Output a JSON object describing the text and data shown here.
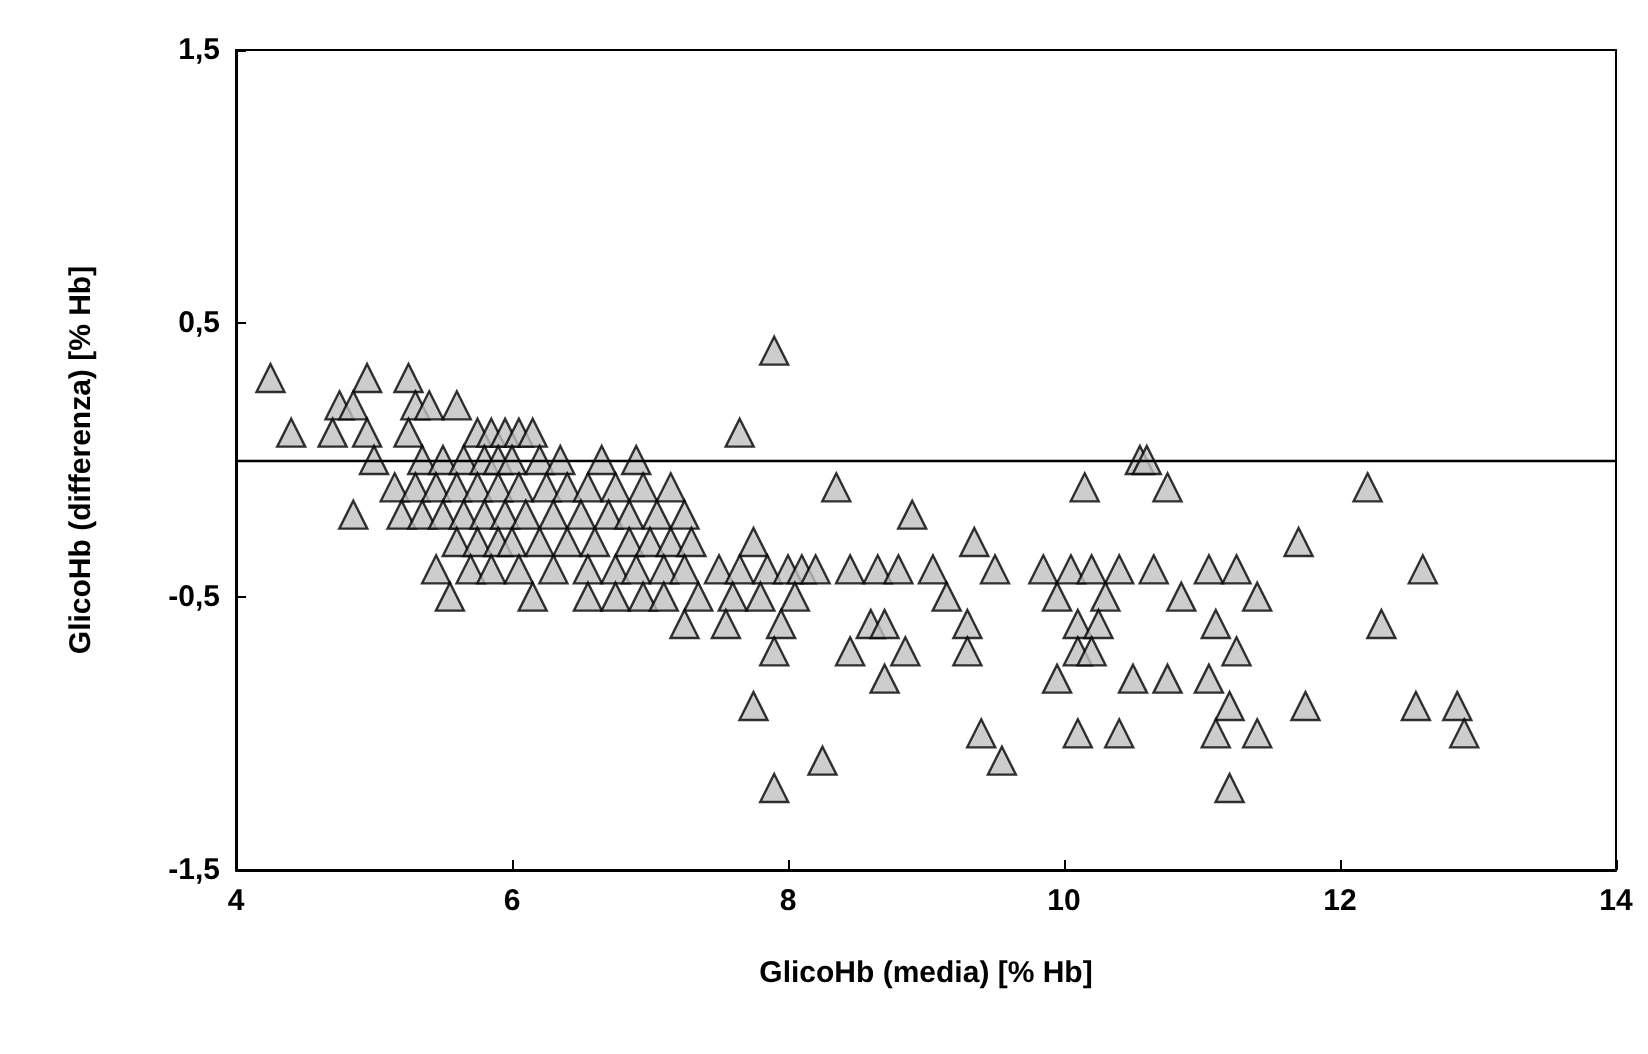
{
  "chart_data": {
    "type": "scatter",
    "xlabel": "GlicoHb (media) [% Hb]",
    "ylabel": "GlicoHb (differenza) [% Hb]",
    "xlim": [
      4,
      14
    ],
    "xticks": [
      4,
      6,
      8,
      10,
      12,
      14
    ],
    "ylim": [
      -1.5,
      1.5
    ],
    "yticks": [
      {
        "value": -1.5,
        "label": "-1,5"
      },
      {
        "value": -0.5,
        "label": "-0,5"
      },
      {
        "value": 0.5,
        "label": "0,5"
      },
      {
        "value": 1.5,
        "label": "1,5"
      }
    ],
    "grid": false,
    "marker": "triangle",
    "ref_lines": [
      {
        "axis": "y",
        "value": 0,
        "color": "#000000"
      }
    ],
    "series": [
      {
        "color": "#c0c0c0",
        "x": [
          4.25,
          4.95,
          5.25,
          4.75,
          4.85,
          5.3,
          5.4,
          5.6,
          4.4,
          4.7,
          4.95,
          5.25,
          5.75,
          5.85,
          5.95,
          6.05,
          6.15,
          7.65,
          7.9,
          5.0,
          5.35,
          5.5,
          5.65,
          5.8,
          5.9,
          6.0,
          6.2,
          6.35,
          6.65,
          6.9,
          10.55,
          10.6,
          5.15,
          5.3,
          5.45,
          5.6,
          5.75,
          5.9,
          6.05,
          6.25,
          6.4,
          6.55,
          6.75,
          6.95,
          7.15,
          8.35,
          10.15,
          10.75,
          12.2,
          4.85,
          5.2,
          5.35,
          5.5,
          5.65,
          5.8,
          5.95,
          6.1,
          6.3,
          6.5,
          6.7,
          6.85,
          7.05,
          7.25,
          8.9,
          5.6,
          5.75,
          5.9,
          6.0,
          6.2,
          6.4,
          6.6,
          6.85,
          7.0,
          7.15,
          7.3,
          7.75,
          9.35,
          11.7,
          5.45,
          5.7,
          5.85,
          6.05,
          6.3,
          6.55,
          6.75,
          6.9,
          7.1,
          7.25,
          7.5,
          7.65,
          7.85,
          8.0,
          8.1,
          8.2,
          8.45,
          8.65,
          8.8,
          9.05,
          9.5,
          9.85,
          10.05,
          10.2,
          10.4,
          10.65,
          11.05,
          11.25,
          12.6,
          5.55,
          6.15,
          6.55,
          6.75,
          6.95,
          7.1,
          7.35,
          7.6,
          7.8,
          8.05,
          9.15,
          9.95,
          10.3,
          10.85,
          11.4,
          7.25,
          7.55,
          7.95,
          8.6,
          8.7,
          9.3,
          10.1,
          10.25,
          11.1,
          12.3,
          7.9,
          8.45,
          8.85,
          9.3,
          10.1,
          10.2,
          11.25,
          8.7,
          9.95,
          10.5,
          10.75,
          11.05,
          7.75,
          11.2,
          11.75,
          12.55,
          12.85,
          9.4,
          10.1,
          10.4,
          11.1,
          11.4,
          12.9,
          8.25,
          9.55,
          7.9,
          11.2
        ],
        "values": [
          0.3,
          0.3,
          0.3,
          0.2,
          0.2,
          0.2,
          0.2,
          0.2,
          0.1,
          0.1,
          0.1,
          0.1,
          0.1,
          0.1,
          0.1,
          0.1,
          0.1,
          0.1,
          0.4,
          0,
          0,
          0,
          0,
          0,
          0,
          0,
          0,
          0,
          0,
          0,
          0,
          0,
          -0.1,
          -0.1,
          -0.1,
          -0.1,
          -0.1,
          -0.1,
          -0.1,
          -0.1,
          -0.1,
          -0.1,
          -0.1,
          -0.1,
          -0.1,
          -0.1,
          -0.1,
          -0.1,
          -0.1,
          -0.2,
          -0.2,
          -0.2,
          -0.2,
          -0.2,
          -0.2,
          -0.2,
          -0.2,
          -0.2,
          -0.2,
          -0.2,
          -0.2,
          -0.2,
          -0.2,
          -0.2,
          -0.3,
          -0.3,
          -0.3,
          -0.3,
          -0.3,
          -0.3,
          -0.3,
          -0.3,
          -0.3,
          -0.3,
          -0.3,
          -0.3,
          -0.3,
          -0.3,
          -0.4,
          -0.4,
          -0.4,
          -0.4,
          -0.4,
          -0.4,
          -0.4,
          -0.4,
          -0.4,
          -0.4,
          -0.4,
          -0.4,
          -0.4,
          -0.4,
          -0.4,
          -0.4,
          -0.4,
          -0.4,
          -0.4,
          -0.4,
          -0.4,
          -0.4,
          -0.4,
          -0.4,
          -0.4,
          -0.4,
          -0.4,
          -0.4,
          -0.4,
          -0.5,
          -0.5,
          -0.5,
          -0.5,
          -0.5,
          -0.5,
          -0.5,
          -0.5,
          -0.5,
          -0.5,
          -0.5,
          -0.5,
          -0.5,
          -0.5,
          -0.5,
          -0.6,
          -0.6,
          -0.6,
          -0.6,
          -0.6,
          -0.6,
          -0.6,
          -0.6,
          -0.6,
          -0.6,
          -0.7,
          -0.7,
          -0.7,
          -0.7,
          -0.7,
          -0.7,
          -0.7,
          -0.8,
          -0.8,
          -0.8,
          -0.8,
          -0.8,
          -0.9,
          -0.9,
          -0.9,
          -0.9,
          -0.9,
          -1.0,
          -1.0,
          -1.0,
          -1.0,
          -1.0,
          -1.0,
          -1.1,
          -1.1,
          -1.2,
          -1.2
        ]
      }
    ]
  }
}
